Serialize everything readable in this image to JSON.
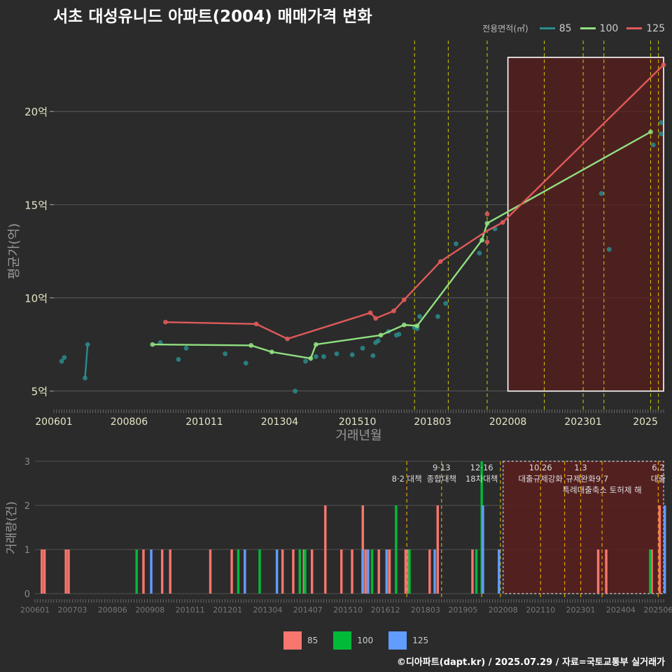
{
  "title": "서초 대성유니드 아파트(2004) 매매가격 변화",
  "footer": "©디아파트(dapt.kr) / 2025.07.29 / 자료=국토교통부 실거래가",
  "colors": {
    "background": "#2b2b2b",
    "grid": "#777777",
    "line_85": "#2a8c8c",
    "line_100": "#90e080",
    "line_125": "#e05a5a",
    "bar_85": "#f8766d",
    "bar_100": "#00ba38",
    "bar_125": "#619cff",
    "policy_line_top": "#cccc00",
    "policy_line_bottom": "#e6a000",
    "highlight_fill": "#5a1e1e",
    "text_tick": "#e6e6c8",
    "text_axis": "#999999"
  },
  "chart_data": [
    {
      "type": "line",
      "title": "서초 대성유니드 아파트(2004) 매매가격 변화",
      "xlabel": "거래년월",
      "ylabel": "평균가(억)",
      "ylim": [
        4.2,
        23.8
      ],
      "grid": true,
      "legend": {
        "title": "전용면적(㎡)",
        "position": "top-right",
        "entries": [
          "85",
          "100",
          "125"
        ]
      },
      "x_ticks": [
        "200601",
        "200806",
        "201011",
        "201304",
        "201510",
        "201803",
        "202008",
        "202301",
        "2025"
      ],
      "y_ticks": [
        {
          "value": 5,
          "label": "5억"
        },
        {
          "value": 10,
          "label": "10억"
        },
        {
          "value": 15,
          "label": "15억"
        },
        {
          "value": 20,
          "label": "20억"
        }
      ],
      "series": [
        {
          "name": "85",
          "color": "#2a8c8c",
          "line": [
            {
              "x": "2007-01",
              "y": 5.7
            },
            {
              "x": "2007-02",
              "y": 7.5
            }
          ],
          "points": [
            {
              "x": "2006-04",
              "y": 6.6
            },
            {
              "x": "2006-05",
              "y": 6.8
            },
            {
              "x": "2007-01",
              "y": 5.7
            },
            {
              "x": "2007-02",
              "y": 7.5
            },
            {
              "x": "2009-06",
              "y": 7.6
            },
            {
              "x": "2010-01",
              "y": 6.7
            },
            {
              "x": "2010-04",
              "y": 7.3
            },
            {
              "x": "2011-07",
              "y": 7.0
            },
            {
              "x": "2012-03",
              "y": 6.5
            },
            {
              "x": "2013-10",
              "y": 5.0
            },
            {
              "x": "2014-02",
              "y": 6.6
            },
            {
              "x": "2014-06",
              "y": 6.85
            },
            {
              "x": "2014-09",
              "y": 6.85
            },
            {
              "x": "2015-02",
              "y": 7.0
            },
            {
              "x": "2015-08",
              "y": 6.95
            },
            {
              "x": "2015-12",
              "y": 7.3
            },
            {
              "x": "2016-04",
              "y": 6.9
            },
            {
              "x": "2016-05",
              "y": 7.6
            },
            {
              "x": "2016-06",
              "y": 7.7
            },
            {
              "x": "2016-10",
              "y": 8.2
            },
            {
              "x": "2017-01",
              "y": 8.0
            },
            {
              "x": "2017-02",
              "y": 8.05
            },
            {
              "x": "2017-08",
              "y": 8.4
            },
            {
              "x": "2017-09",
              "y": 8.35
            },
            {
              "x": "2017-10",
              "y": 9.0
            },
            {
              "x": "2018-05",
              "y": 9.0
            },
            {
              "x": "2018-08",
              "y": 9.7
            },
            {
              "x": "2018-12",
              "y": 12.9
            },
            {
              "x": "2019-09",
              "y": 12.4
            },
            {
              "x": "2019-10",
              "y": 13.1
            },
            {
              "x": "2020-03",
              "y": 13.7
            },
            {
              "x": "2023-08",
              "y": 15.6
            },
            {
              "x": "2023-11",
              "y": 12.6
            },
            {
              "x": "2025-04",
              "y": 18.2
            },
            {
              "x": "2025-07",
              "y": 18.8
            },
            {
              "x": "2025-07",
              "y": 19.4
            }
          ]
        },
        {
          "name": "100",
          "color": "#90e080",
          "line": [
            {
              "x": "2009-03",
              "y": 7.5
            },
            {
              "x": "2012-05",
              "y": 7.45
            },
            {
              "x": "2013-01",
              "y": 7.1
            },
            {
              "x": "2014-04",
              "y": 6.75
            },
            {
              "x": "2014-06",
              "y": 7.5
            },
            {
              "x": "2016-07",
              "y": 8.0
            },
            {
              "x": "2017-04",
              "y": 8.55
            },
            {
              "x": "2017-09",
              "y": 8.5
            },
            {
              "x": "2019-10",
              "y": 13.1
            },
            {
              "x": "2019-12",
              "y": 14.0
            },
            {
              "x": "2025-03",
              "y": 18.9
            }
          ],
          "points": [
            {
              "x": "2009-03",
              "y": 7.5
            },
            {
              "x": "2012-05",
              "y": 7.45
            },
            {
              "x": "2013-01",
              "y": 7.1
            },
            {
              "x": "2014-04",
              "y": 6.75
            },
            {
              "x": "2014-06",
              "y": 7.5
            },
            {
              "x": "2016-07",
              "y": 8.0
            },
            {
              "x": "2017-04",
              "y": 8.55
            },
            {
              "x": "2017-09",
              "y": 8.5
            },
            {
              "x": "2019-10",
              "y": 13.1
            },
            {
              "x": "2019-12",
              "y": 14.0
            },
            {
              "x": "2025-03",
              "y": 18.9
            }
          ]
        },
        {
          "name": "125",
          "color": "#e05a5a",
          "line": [
            {
              "x": "2009-08",
              "y": 8.7
            },
            {
              "x": "2012-07",
              "y": 8.6
            },
            {
              "x": "2013-07",
              "y": 7.8
            },
            {
              "x": "2016-03",
              "y": 9.2
            },
            {
              "x": "2016-05",
              "y": 8.9
            },
            {
              "x": "2016-12",
              "y": 9.3
            },
            {
              "x": "2017-04",
              "y": 9.9
            },
            {
              "x": "2018-06",
              "y": 11.95
            },
            {
              "x": "2019-12",
              "y": 13.6
            },
            {
              "x": "2020-06",
              "y": 14.05
            },
            {
              "x": "2025-08",
              "y": 22.5
            }
          ],
          "points": [
            {
              "x": "2009-08",
              "y": 8.7
            },
            {
              "x": "2012-07",
              "y": 8.6
            },
            {
              "x": "2013-07",
              "y": 7.8
            },
            {
              "x": "2016-03",
              "y": 9.2
            },
            {
              "x": "2016-05",
              "y": 8.9
            },
            {
              "x": "2016-12",
              "y": 9.3
            },
            {
              "x": "2017-04",
              "y": 9.9
            },
            {
              "x": "2018-06",
              "y": 11.95
            },
            {
              "x": "2019-12",
              "y": 14.5
            },
            {
              "x": "2019-12",
              "y": 13.0
            },
            {
              "x": "2020-06",
              "y": 14.05
            },
            {
              "x": "2025-08",
              "y": 22.5
            }
          ]
        }
      ],
      "policy_dates": [
        "2017-08",
        "2018-09",
        "2019-12",
        "2021-10",
        "2023-01",
        "2023-09",
        "2025-03",
        "2025-06"
      ],
      "highlight_range": {
        "x": [
          "2020-08",
          "2025-08"
        ],
        "y": [
          5.0,
          22.9
        ]
      }
    },
    {
      "type": "bar",
      "xlabel": "",
      "ylabel": "거래량(건)",
      "ylim": [
        0,
        3
      ],
      "grid": true,
      "legend": {
        "position": "bottom",
        "entries": [
          "85",
          "100",
          "125"
        ]
      },
      "x_ticks": [
        "200601",
        "200703",
        "200806",
        "200908",
        "201011",
        "201201",
        "201304",
        "201407",
        "201510",
        "201612",
        "201803",
        "201905",
        "202008",
        "202110",
        "202301",
        "202404",
        "202506"
      ],
      "y_ticks": [
        "0",
        "1",
        "2",
        "3"
      ],
      "series": [
        {
          "name": "85",
          "color": "#f8766d",
          "bars": [
            {
              "x": "2006-04",
              "y": 1
            },
            {
              "x": "2006-05",
              "y": 1
            },
            {
              "x": "2007-01",
              "y": 1
            },
            {
              "x": "2007-02",
              "y": 1
            },
            {
              "x": "2009-06",
              "y": 1
            },
            {
              "x": "2010-01",
              "y": 1
            },
            {
              "x": "2010-04",
              "y": 1
            },
            {
              "x": "2011-07",
              "y": 1
            },
            {
              "x": "2012-03",
              "y": 1
            },
            {
              "x": "2013-10",
              "y": 1
            },
            {
              "x": "2014-02",
              "y": 1
            },
            {
              "x": "2014-06",
              "y": 1
            },
            {
              "x": "2014-09",
              "y": 1
            },
            {
              "x": "2015-02",
              "y": 2
            },
            {
              "x": "2015-08",
              "y": 1
            },
            {
              "x": "2015-12",
              "y": 1
            },
            {
              "x": "2016-04",
              "y": 2
            },
            {
              "x": "2016-05",
              "y": 1
            },
            {
              "x": "2016-06",
              "y": 1
            },
            {
              "x": "2016-10",
              "y": 1
            },
            {
              "x": "2017-01",
              "y": 1
            },
            {
              "x": "2017-02",
              "y": 1
            },
            {
              "x": "2017-08",
              "y": 1
            },
            {
              "x": "2017-09",
              "y": 1
            },
            {
              "x": "2018-05",
              "y": 1
            },
            {
              "x": "2018-08",
              "y": 2
            },
            {
              "x": "2019-09",
              "y": 1
            },
            {
              "x": "2023-08",
              "y": 1
            },
            {
              "x": "2023-11",
              "y": 1
            },
            {
              "x": "2025-04",
              "y": 1
            },
            {
              "x": "2025-07",
              "y": 2
            }
          ]
        },
        {
          "name": "100",
          "color": "#00ba38",
          "bars": [
            {
              "x": "2009-03",
              "y": 1
            },
            {
              "x": "2012-05",
              "y": 1
            },
            {
              "x": "2013-01",
              "y": 1
            },
            {
              "x": "2014-04",
              "y": 1
            },
            {
              "x": "2014-06",
              "y": 1
            },
            {
              "x": "2016-07",
              "y": 1
            },
            {
              "x": "2017-04",
              "y": 2
            },
            {
              "x": "2017-09",
              "y": 1
            },
            {
              "x": "2019-10",
              "y": 1
            },
            {
              "x": "2019-12",
              "y": 3
            },
            {
              "x": "2025-03",
              "y": 1
            }
          ]
        },
        {
          "name": "125",
          "color": "#619cff",
          "bars": [
            {
              "x": "2009-08",
              "y": 1
            },
            {
              "x": "2012-07",
              "y": 1
            },
            {
              "x": "2013-07",
              "y": 1
            },
            {
              "x": "2016-03",
              "y": 1
            },
            {
              "x": "2016-05",
              "y": 1
            },
            {
              "x": "2016-12",
              "y": 1
            },
            {
              "x": "2018-06",
              "y": 1
            },
            {
              "x": "2019-12",
              "y": 2
            },
            {
              "x": "2020-06",
              "y": 1
            },
            {
              "x": "2025-08",
              "y": 2
            }
          ]
        }
      ],
      "policy_dates": [
        "2017-08",
        "2018-09",
        "2019-12",
        "2020-07",
        "2021-10",
        "2022-07",
        "2023-01",
        "2023-09",
        "2025-06"
      ],
      "highlight_range": {
        "x": [
          "2020-08",
          "2025-08"
        ],
        "y": [
          0,
          3
        ]
      },
      "annotations": [
        {
          "x": "2017-08",
          "row": 1,
          "text": "8·2 대책"
        },
        {
          "x": "2018-09",
          "row": 0,
          "text": "9·13"
        },
        {
          "x": "2018-09",
          "row": 1,
          "text": "종합대책"
        },
        {
          "x": "2019-12",
          "row": 0,
          "text": "12·16"
        },
        {
          "x": "2019-12",
          "row": 1,
          "text": "18차대책"
        },
        {
          "x": "2021-10",
          "row": 0,
          "text": "10.26"
        },
        {
          "x": "2021-10",
          "row": 1,
          "text": "대출규제강화"
        },
        {
          "x": "2023-01",
          "row": 0,
          "text": "1.3"
        },
        {
          "x": "2023-01",
          "row": 1,
          "text": "규제완화"
        },
        {
          "x": "2023-09",
          "row": 1,
          "text": "9.7"
        },
        {
          "x": "2023-09",
          "row": 2,
          "text": "특례대출축소 토허제 해"
        },
        {
          "x": "2025-06",
          "row": 0,
          "text": "6.2"
        },
        {
          "x": "2025-06",
          "row": 1,
          "text": "대출"
        }
      ]
    }
  ]
}
